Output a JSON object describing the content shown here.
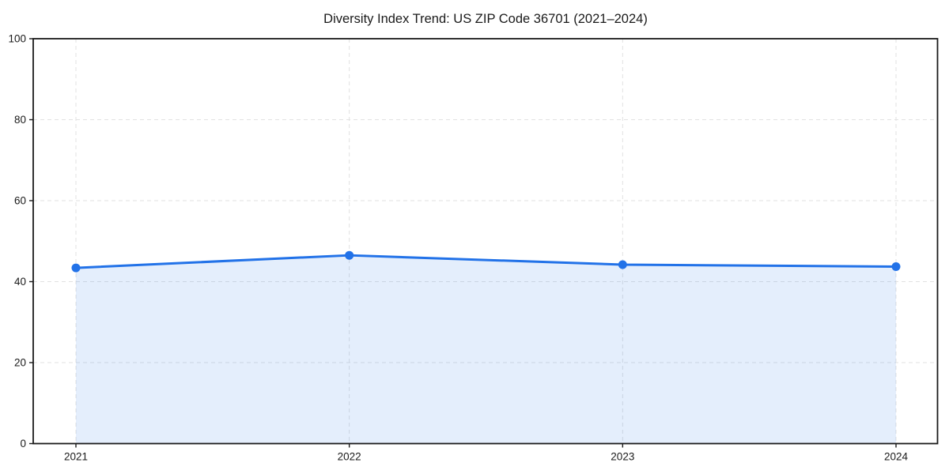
{
  "figure": {
    "title": "Diversity Index Trend: US ZIP Code 36701 (2021–2024)"
  },
  "chart_data": {
    "type": "area",
    "title": "Diversity Index Trend: US ZIP Code 36701 (2021–2024)",
    "categories": [
      "2021",
      "2022",
      "2023",
      "2024"
    ],
    "series": [
      {
        "name": "Diversity Index",
        "values": [
          43.4,
          46.5,
          44.2,
          43.7
        ]
      }
    ],
    "xlabel": "",
    "ylabel": "",
    "ylim": [
      0,
      100
    ],
    "yticks": [
      0,
      20,
      40,
      60,
      80,
      100
    ],
    "grid": "dashed-both-axes",
    "legend_position": "none",
    "colors": {
      "line": "#2272e8",
      "marker": "#2272e8",
      "fill": "#2272e8",
      "fill_opacity": 0.12,
      "gridline": "#e2e2e2",
      "spine": "#1a1a1a",
      "tick_label": "#1a1a1a",
      "background": "#ffffff"
    },
    "style": {
      "line_width": 3,
      "marker_radius": 5.5,
      "marker_shape": "circle",
      "fill_to_baseline": 0
    }
  }
}
